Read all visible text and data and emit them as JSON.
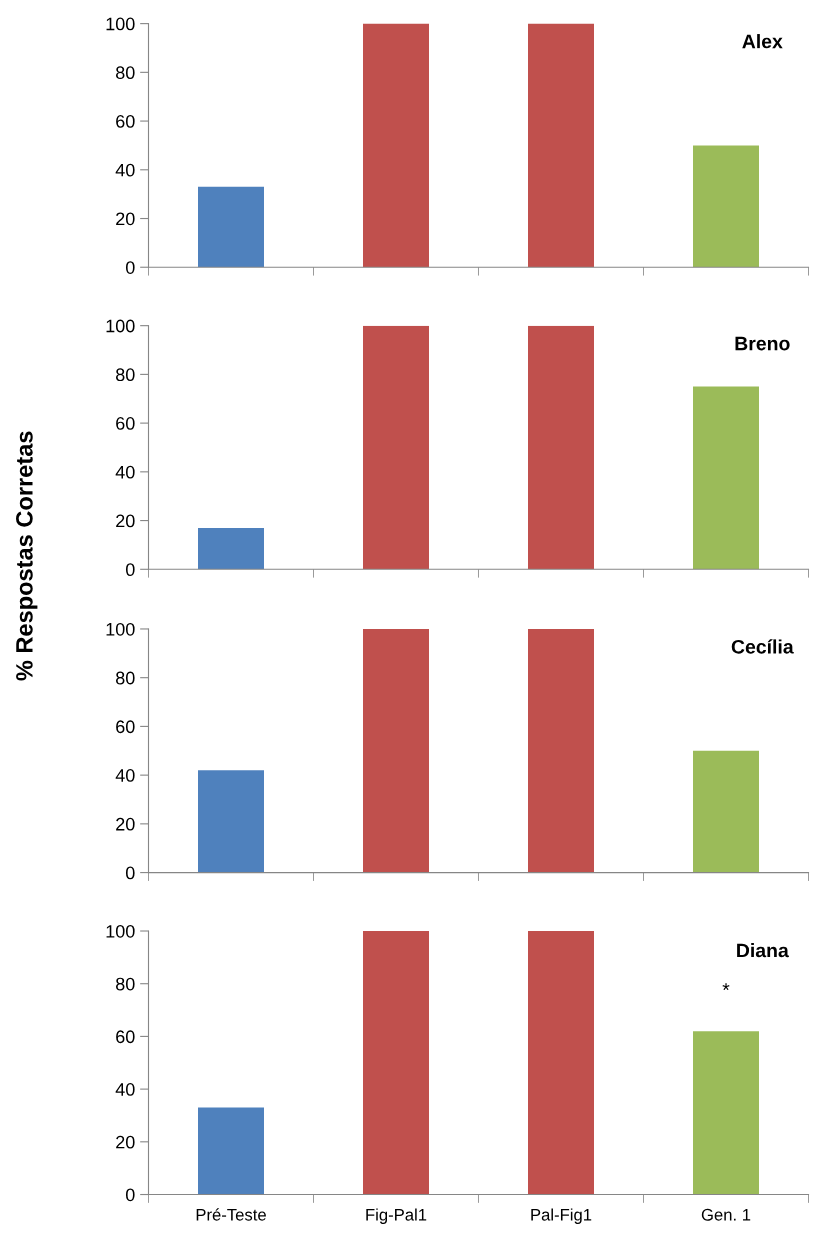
{
  "chart_data": [
    {
      "type": "bar",
      "title": "Alex",
      "categories": [
        null,
        null,
        null,
        null
      ],
      "values": [
        33,
        100,
        100,
        50
      ],
      "colors": [
        "#4f81bd",
        "#c0504d",
        "#c0504d",
        "#9bbb59"
      ],
      "ylim": [
        0,
        100
      ],
      "yticks": [
        0,
        20,
        40,
        60,
        80,
        100
      ],
      "tick_labels": "y"
    },
    {
      "type": "bar",
      "title": "Breno",
      "categories": [
        null,
        null,
        null,
        null
      ],
      "values": [
        17,
        100,
        100,
        75
      ],
      "colors": [
        "#4f81bd",
        "#c0504d",
        "#c0504d",
        "#9bbb59"
      ],
      "ylim": [
        0,
        100
      ],
      "yticks": [
        0,
        20,
        40,
        60,
        80,
        100
      ],
      "tick_labels": "y"
    },
    {
      "type": "bar",
      "title": "Cecília",
      "ylabel": "% Respostas Corretas",
      "categories": [
        null,
        null,
        null,
        null
      ],
      "values": [
        42,
        100,
        100,
        50
      ],
      "colors": [
        "#4f81bd",
        "#c0504d",
        "#c0504d",
        "#9bbb59"
      ],
      "ylim": [
        0,
        100
      ],
      "yticks": [
        0,
        20,
        40,
        60,
        80,
        100
      ],
      "tick_labels": "y"
    },
    {
      "type": "bar",
      "title": "Diana",
      "categories": [
        "Pré-Teste",
        "Fig-Pal1",
        "Pal-Fig1",
        "Gen. 1"
      ],
      "values": [
        33,
        100,
        100,
        62
      ],
      "colors": [
        "#4f81bd",
        "#c0504d",
        "#c0504d",
        "#9bbb59"
      ],
      "ylim": [
        0,
        100
      ],
      "yticks": [
        0,
        20,
        40,
        60,
        80,
        100
      ],
      "annotations": [
        "*"
      ]
    }
  ]
}
